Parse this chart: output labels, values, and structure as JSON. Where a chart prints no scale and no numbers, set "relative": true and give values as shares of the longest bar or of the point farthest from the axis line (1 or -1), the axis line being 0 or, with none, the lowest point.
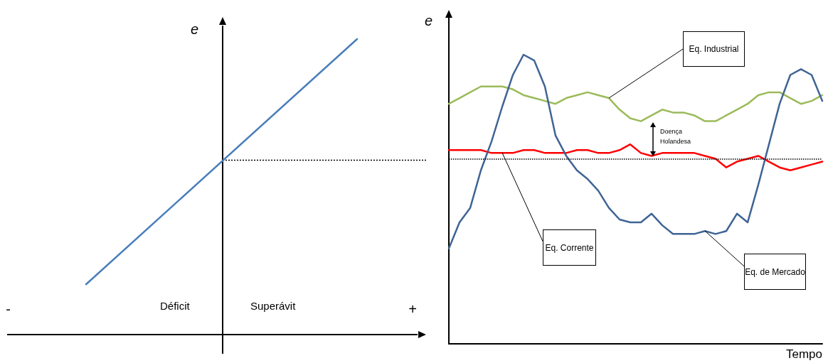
{
  "chart_data": [
    {
      "type": "line",
      "relative": true,
      "ylabel": "e",
      "categories": [
        null,
        null
      ],
      "marker": "none",
      "line_style": "solid",
      "series": [
        {
          "color": "#4a7ebb",
          "values": [
            0.17,
            1
          ]
        }
      ],
      "ref_lines": [
        {
          "axis": "y",
          "value": 0.59,
          "line_style": "dotted",
          "color": "#000000"
        }
      ],
      "annotations": [
        "-",
        "Déficit",
        "Superávit",
        "+"
      ]
    },
    {
      "type": "line",
      "relative": true,
      "ylabel": "e",
      "xlabel": "Tempo",
      "marker": "none",
      "line_style": "solid",
      "categories": [
        null,
        null,
        null,
        null,
        null,
        null,
        null,
        null,
        null,
        null,
        null,
        null,
        null,
        null,
        null,
        null,
        null,
        null,
        null,
        null,
        null,
        null,
        null,
        null,
        null,
        null,
        null,
        null,
        null,
        null,
        null,
        null,
        null,
        null,
        null,
        null
      ],
      "series": [
        {
          "name": "Eq. Industrial",
          "color": "#9bbb59",
          "values": [
            0.83,
            0.85,
            0.87,
            0.89,
            0.89,
            0.89,
            0.88,
            0.86,
            0.85,
            0.84,
            0.83,
            0.85,
            0.86,
            0.87,
            0.86,
            0.85,
            0.81,
            0.78,
            0.77,
            0.79,
            0.81,
            0.8,
            0.8,
            0.79,
            0.77,
            0.77,
            0.79,
            0.81,
            0.83,
            0.86,
            0.87,
            0.87,
            0.85,
            0.83,
            0.84,
            0.86
          ]
        },
        {
          "name": "Eq. Corrente",
          "color": "#ff0000",
          "values": [
            0.67,
            0.67,
            0.67,
            0.67,
            0.66,
            0.66,
            0.66,
            0.67,
            0.67,
            0.66,
            0.66,
            0.66,
            0.67,
            0.67,
            0.66,
            0.66,
            0.67,
            0.69,
            0.66,
            0.65,
            0.66,
            0.66,
            0.66,
            0.66,
            0.65,
            0.64,
            0.61,
            0.63,
            0.64,
            0.65,
            0.63,
            0.61,
            0.6,
            0.61,
            0.62,
            0.63
          ]
        },
        {
          "name": "Eq. de Mercado",
          "color": "#3f6494",
          "values": [
            0.33,
            0.42,
            0.47,
            0.6,
            0.7,
            0.82,
            0.93,
            1,
            0.98,
            0.89,
            0.72,
            0.65,
            0.6,
            0.57,
            0.53,
            0.47,
            0.43,
            0.42,
            0.42,
            0.45,
            0.41,
            0.38,
            0.38,
            0.38,
            0.39,
            0.38,
            0.39,
            0.45,
            0.42,
            0.55,
            0.69,
            0.83,
            0.93,
            0.95,
            0.93,
            0.84
          ]
        }
      ],
      "ref_lines": [
        {
          "axis": "y",
          "value": 0.64,
          "line_style": "dotted",
          "color": "#000000"
        }
      ],
      "annotations": [
        "Doença Holandesa"
      ]
    }
  ]
}
